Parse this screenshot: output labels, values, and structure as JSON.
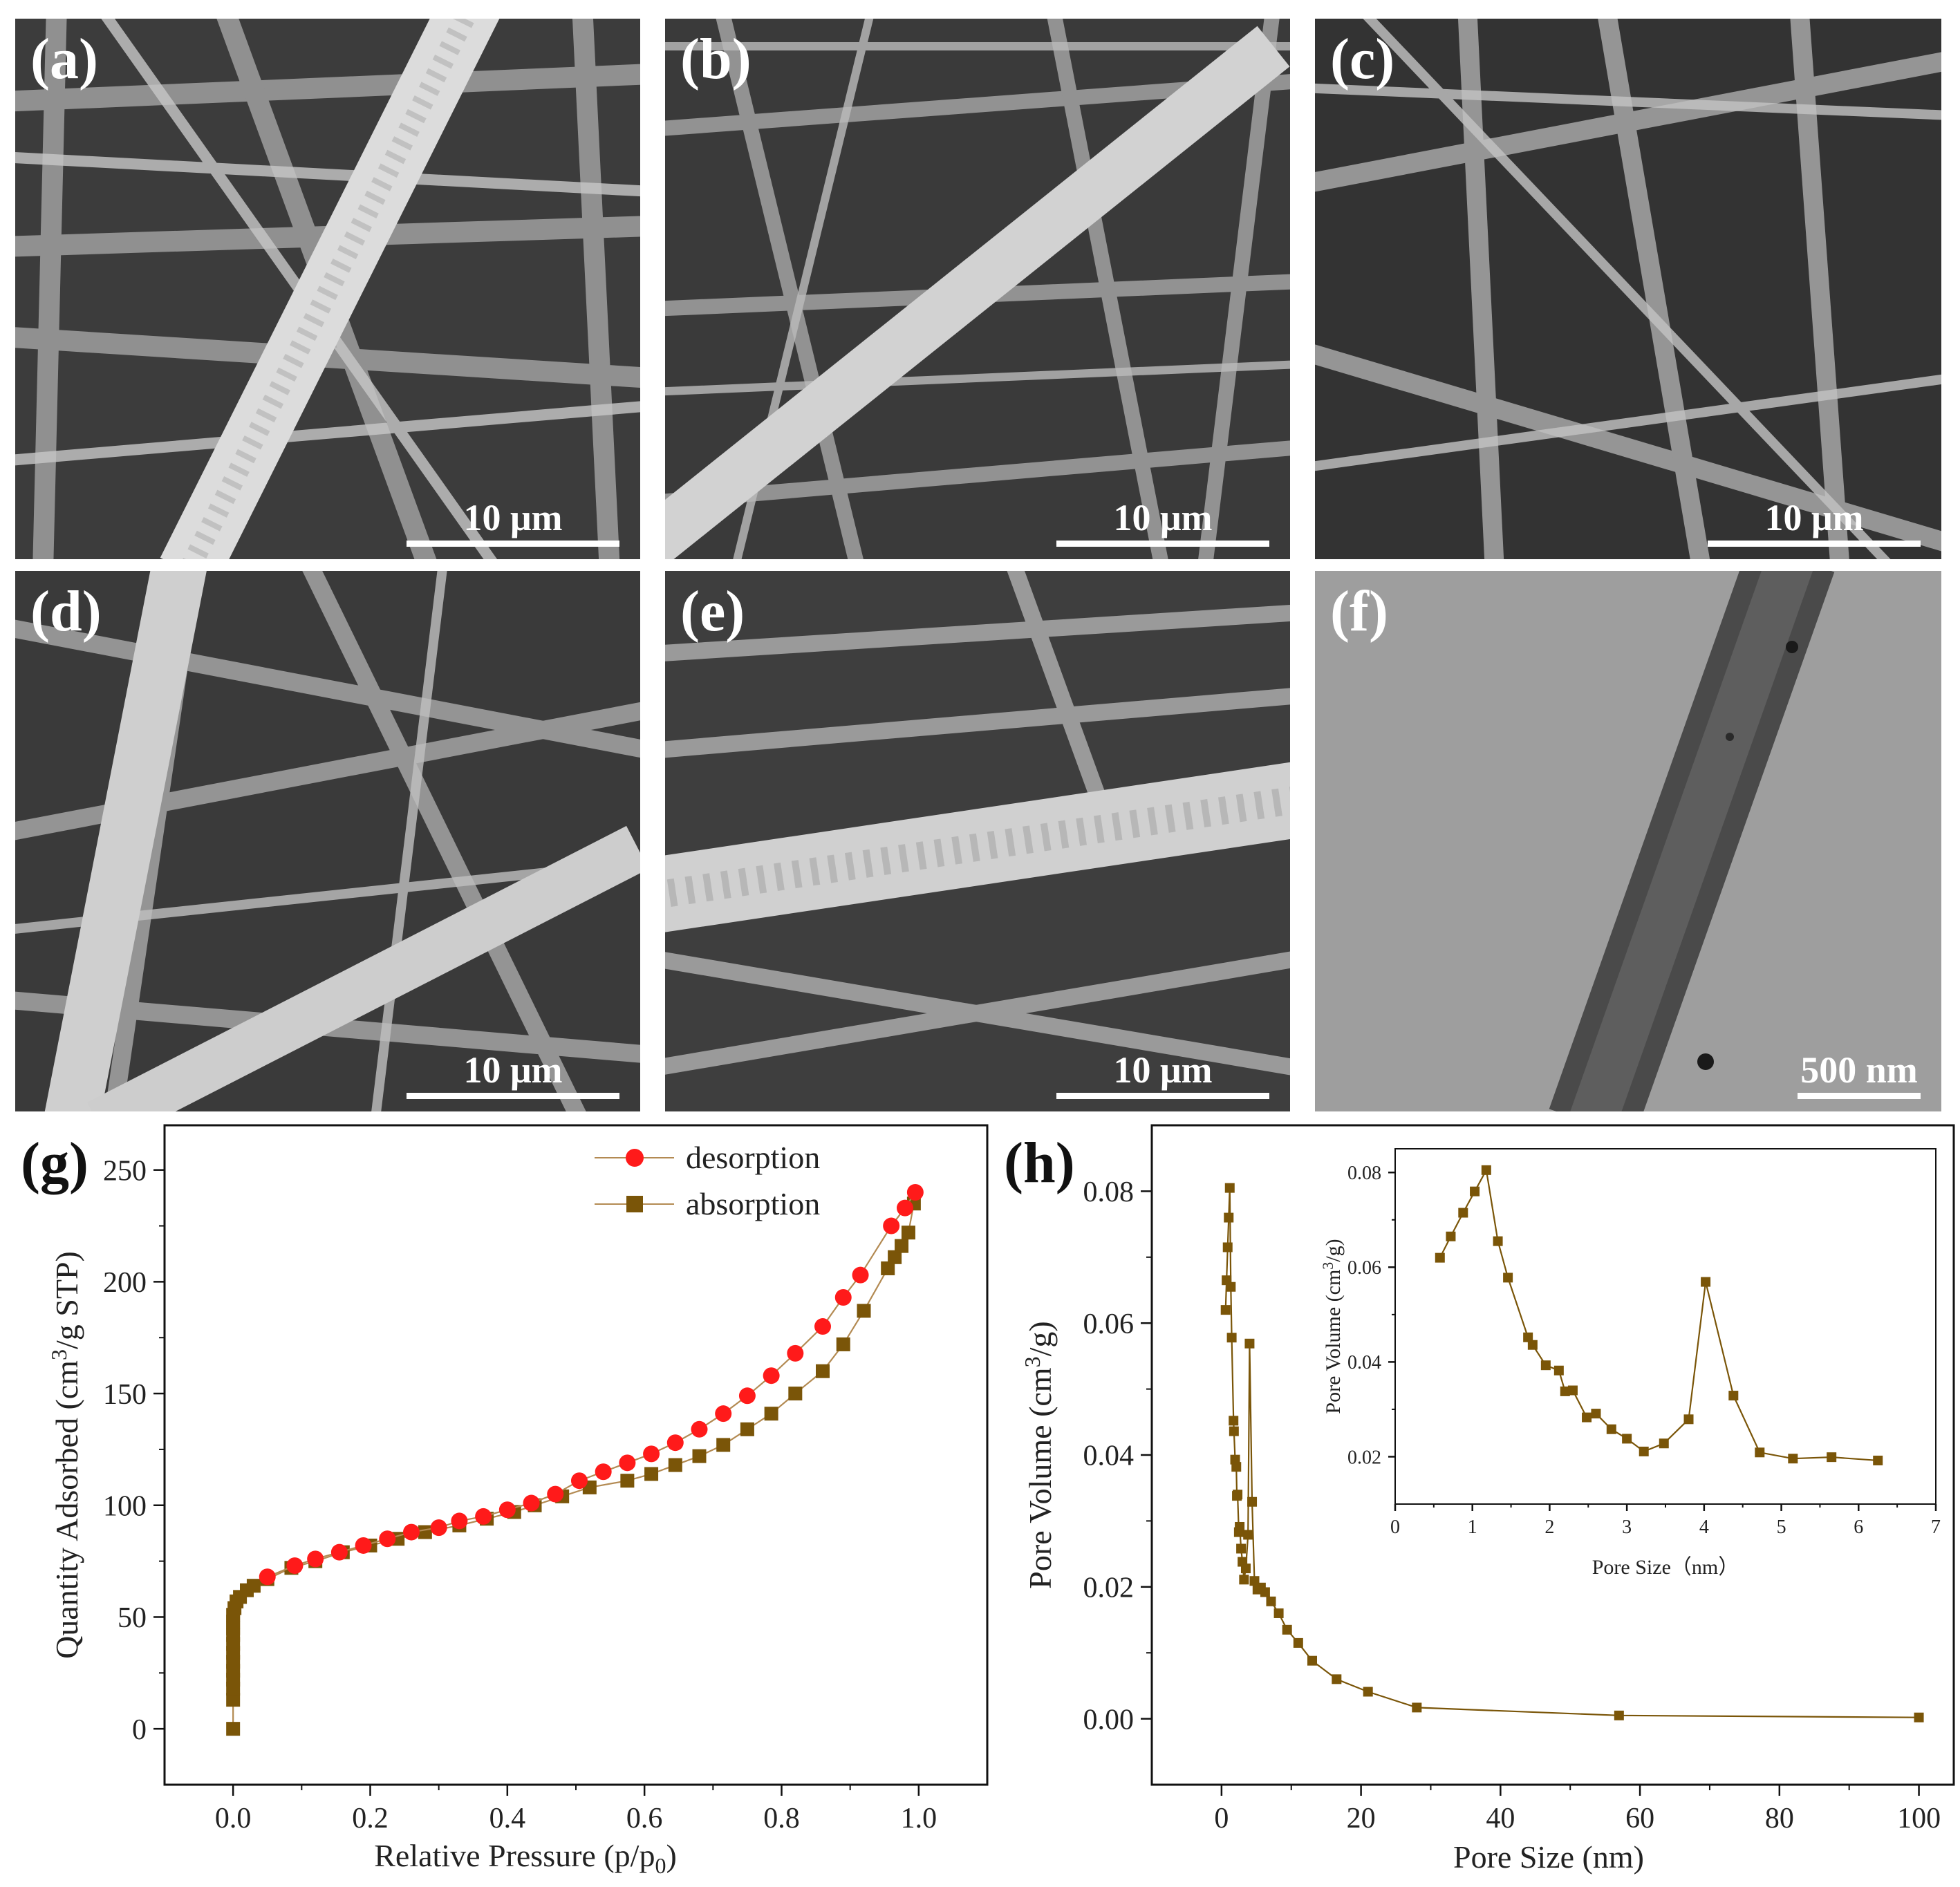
{
  "figure": {
    "panels": [
      {
        "id": "a",
        "label": "(a)",
        "kind": "SEM",
        "scale": "10 μm"
      },
      {
        "id": "b",
        "label": "(b)",
        "kind": "SEM",
        "scale": "10 μm"
      },
      {
        "id": "c",
        "label": "(c)",
        "kind": "SEM",
        "scale": "10 μm"
      },
      {
        "id": "d",
        "label": "(d)",
        "kind": "SEM",
        "scale": "10 μm"
      },
      {
        "id": "e",
        "label": "(e)",
        "kind": "SEM",
        "scale": "10 μm"
      },
      {
        "id": "f",
        "label": "(f)",
        "kind": "TEM",
        "scale": "500 nm"
      }
    ]
  },
  "colors": {
    "desorption": "#ff1a1a",
    "absorption": "#7a5508",
    "line": "#b38a52"
  },
  "chart_data": [
    {
      "id": "g",
      "label": "(g)",
      "type": "scatter",
      "xlabel": "Relative Pressure (p/p0)",
      "ylabel": "Quantity Adsorbed (cm3/g STP)",
      "xlim": [
        -0.1,
        1.1
      ],
      "ylim": [
        -25,
        270
      ],
      "xticks": [
        "0.0",
        "0.2",
        "0.4",
        "0.6",
        "0.8",
        "1.0"
      ],
      "yticks": [
        "0",
        "50",
        "100",
        "150",
        "200",
        "250"
      ],
      "legend": "top-right",
      "series": [
        {
          "name": "desorption",
          "marker": "circle",
          "x": [
            0.05,
            0.09,
            0.12,
            0.155,
            0.19,
            0.225,
            0.26,
            0.3,
            0.33,
            0.365,
            0.4,
            0.435,
            0.47,
            0.505,
            0.54,
            0.575,
            0.61,
            0.645,
            0.68,
            0.715,
            0.75,
            0.785,
            0.82,
            0.86,
            0.89,
            0.915,
            0.96,
            0.98,
            0.995
          ],
          "y": [
            68,
            73,
            76,
            79,
            82,
            85,
            88,
            90,
            93,
            95,
            98,
            101,
            105,
            111,
            115,
            119,
            123,
            128,
            134,
            141,
            149,
            158,
            168,
            180,
            193,
            203,
            225,
            233,
            240
          ]
        },
        {
          "name": "absorption",
          "marker": "square",
          "x": [
            0.0,
            0.0,
            0.0,
            0.0,
            0.0,
            0.0,
            0.0,
            0.0,
            0.0,
            0.0,
            0.0,
            0.0,
            0.002,
            0.005,
            0.01,
            0.02,
            0.03,
            0.05,
            0.085,
            0.12,
            0.16,
            0.2,
            0.24,
            0.28,
            0.33,
            0.37,
            0.41,
            0.44,
            0.48,
            0.52,
            0.575,
            0.61,
            0.645,
            0.68,
            0.715,
            0.75,
            0.785,
            0.82,
            0.86,
            0.89,
            0.92,
            0.955,
            0.965,
            0.975,
            0.985,
            0.993
          ],
          "y": [
            0,
            13,
            18,
            22,
            26,
            30,
            34,
            38,
            42,
            45,
            48,
            51,
            54,
            57,
            59,
            62,
            64,
            67,
            72,
            75,
            79,
            82,
            85,
            88,
            91,
            94,
            97,
            100,
            104,
            108,
            111,
            114,
            118,
            122,
            127,
            134,
            141,
            150,
            160,
            172,
            187,
            206,
            211,
            216,
            222,
            235
          ]
        }
      ]
    },
    {
      "id": "h",
      "label": "(h)",
      "type": "line",
      "xlabel": "Pore Size (nm)",
      "ylabel": "Pore Volume (cm3/g)",
      "xlim": [
        -10,
        105
      ],
      "ylim": [
        -0.01,
        0.09
      ],
      "xticks": [
        "0",
        "20",
        "40",
        "60",
        "80",
        "100"
      ],
      "yticks": [
        "0.00",
        "0.02",
        "0.04",
        "0.06",
        "0.08"
      ],
      "series": [
        {
          "name": "pore volume",
          "marker": "square",
          "x": [
            0.58,
            0.72,
            0.88,
            1.03,
            1.18,
            1.33,
            1.46,
            1.72,
            1.78,
            1.95,
            2.12,
            2.2,
            2.3,
            2.48,
            2.6,
            2.8,
            3.0,
            3.22,
            3.48,
            3.8,
            4.02,
            4.38,
            4.72,
            5.15,
            5.65,
            6.25,
            7.1,
            8.2,
            9.4,
            11.0,
            13.0,
            16.5,
            21.0,
            28.0,
            57.0,
            100.0
          ],
          "y": [
            0.062,
            0.0665,
            0.0715,
            0.076,
            0.0805,
            0.0655,
            0.0578,
            0.0452,
            0.0436,
            0.0393,
            0.0382,
            0.0338,
            0.034,
            0.0283,
            0.0291,
            0.0258,
            0.0238,
            0.0211,
            0.0228,
            0.0279,
            0.0569,
            0.0329,
            0.0209,
            0.0196,
            0.0199,
            0.0192,
            0.0178,
            0.016,
            0.0135,
            0.0115,
            0.0088,
            0.006,
            0.0041,
            0.0017,
            0.0005,
            0.0002
          ]
        }
      ],
      "inset": {
        "type": "line",
        "xlabel": "Pore Size（nm）",
        "ylabel": "Pore Volume (cm3/g)",
        "xlim": [
          0,
          7
        ],
        "ylim": [
          0.01,
          0.085
        ],
        "xticks": [
          "0",
          "1",
          "2",
          "3",
          "4",
          "5",
          "6",
          "7"
        ],
        "yticks": [
          "0.02",
          "0.04",
          "0.06",
          "0.08"
        ],
        "x": [
          0.58,
          0.72,
          0.88,
          1.03,
          1.18,
          1.33,
          1.46,
          1.72,
          1.78,
          1.95,
          2.12,
          2.2,
          2.3,
          2.48,
          2.6,
          2.8,
          3.0,
          3.22,
          3.48,
          3.8,
          4.02,
          4.38,
          4.72,
          5.15,
          5.65,
          6.25
        ],
        "y": [
          0.062,
          0.0665,
          0.0715,
          0.076,
          0.0805,
          0.0655,
          0.0578,
          0.0452,
          0.0436,
          0.0393,
          0.0382,
          0.0338,
          0.034,
          0.0283,
          0.0291,
          0.0258,
          0.0238,
          0.0211,
          0.0228,
          0.0279,
          0.0569,
          0.0329,
          0.0209,
          0.0196,
          0.0199,
          0.0192
        ]
      }
    }
  ]
}
